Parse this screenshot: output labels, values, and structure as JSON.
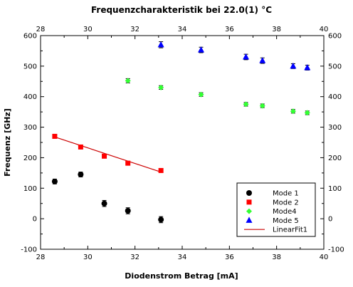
{
  "chart_data": {
    "type": "scatter",
    "title": "Frequenzcharakteristik bei 22.0(1) °C",
    "xlabel": "Diodenstrom Betrag [mA]",
    "ylabel": "Frequenz [GHz]",
    "xlim": [
      28,
      40
    ],
    "ylim": [
      -100,
      600
    ],
    "xticks": [
      28,
      30,
      32,
      34,
      36,
      38,
      40
    ],
    "yticks": [
      -100,
      0,
      100,
      200,
      300,
      400,
      500,
      600
    ],
    "grid": false,
    "legend_position": "bottom-right",
    "series": [
      {
        "name": "Mode 1",
        "marker": "circle",
        "color": "#000000",
        "x": [
          28.6,
          29.7,
          30.7,
          31.7,
          33.1
        ],
        "y": [
          122,
          145,
          50,
          26,
          -3
        ],
        "yerr": [
          8,
          8,
          10,
          10,
          10
        ]
      },
      {
        "name": "Mode 2",
        "marker": "square",
        "color": "#ff0000",
        "x": [
          28.6,
          29.7,
          30.7,
          31.7,
          33.1
        ],
        "y": [
          270,
          235,
          205,
          182,
          158
        ],
        "yerr": [
          5,
          5,
          6,
          6,
          6
        ]
      },
      {
        "name": "Mode4",
        "marker": "diamond",
        "color": "#33ff33",
        "x": [
          31.7,
          33.1,
          34.8,
          36.7,
          37.4,
          38.7,
          39.3
        ],
        "y": [
          452,
          430,
          407,
          375,
          370,
          352,
          347
        ],
        "yerr": [
          7,
          6,
          6,
          6,
          6,
          6,
          6
        ]
      },
      {
        "name": "Mode 5",
        "marker": "triangle",
        "color": "#0000ff",
        "x": [
          33.1,
          34.8,
          36.7,
          37.4,
          38.7,
          39.3
        ],
        "y": [
          570,
          553,
          530,
          518,
          500,
          495
        ],
        "yerr": [
          10,
          9,
          9,
          9,
          8,
          8
        ]
      }
    ],
    "fit": {
      "name": "LinearFit1",
      "color": "#cc0000",
      "x": [
        28.6,
        33.1
      ],
      "y": [
        268,
        153
      ]
    }
  }
}
